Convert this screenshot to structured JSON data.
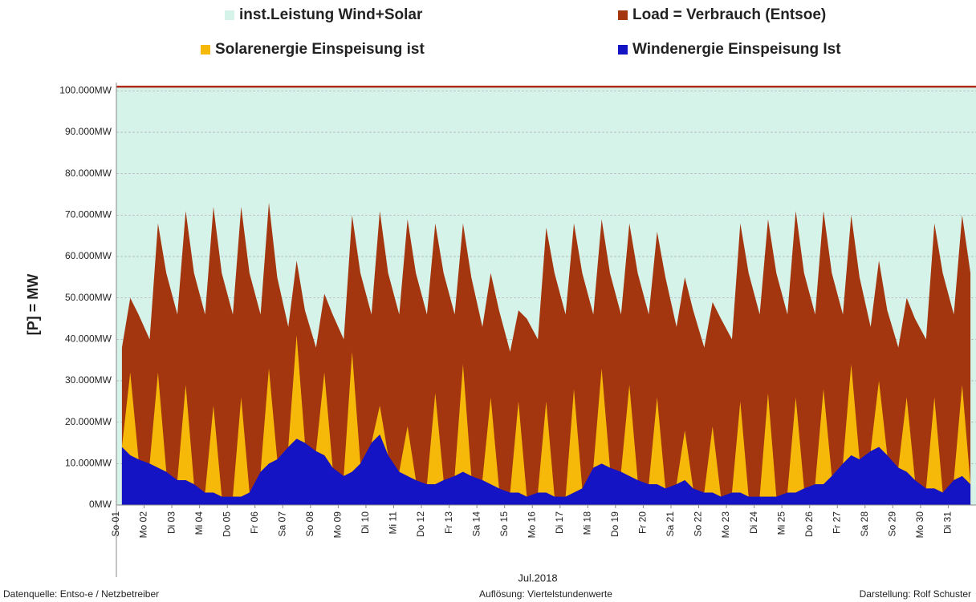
{
  "chart_data": {
    "type": "area",
    "capacity": {
      "name": "inst.Leistung Wind+Solar",
      "color": "#d6f3ea",
      "line_color": "#b0281a",
      "value": 101000
    },
    "x": [
      1.2,
      1.5,
      1.8,
      2.2,
      2.5,
      2.8,
      3.2,
      3.5,
      3.8,
      4.2,
      4.5,
      4.8,
      5.2,
      5.5,
      5.8,
      6.2,
      6.5,
      6.8,
      7.2,
      7.5,
      7.8,
      8.2,
      8.5,
      8.8,
      9.2,
      9.5,
      9.8,
      10.2,
      10.5,
      10.8,
      11.2,
      11.5,
      11.8,
      12.2,
      12.5,
      12.8,
      13.2,
      13.5,
      13.8,
      14.2,
      14.5,
      14.8,
      15.2,
      15.5,
      15.8,
      16.2,
      16.5,
      16.8,
      17.2,
      17.5,
      17.8,
      18.2,
      18.5,
      18.8,
      19.2,
      19.5,
      19.8,
      20.2,
      20.5,
      20.8,
      21.2,
      21.5,
      21.8,
      22.2,
      22.5,
      22.8,
      23.2,
      23.5,
      23.8,
      24.2,
      24.5,
      24.8,
      25.2,
      25.5,
      25.8,
      26.2,
      26.5,
      26.8,
      27.2,
      27.5,
      27.8,
      28.2,
      28.5,
      28.8,
      29.2,
      29.5,
      29.8,
      30.2,
      30.5,
      30.8,
      31.2,
      31.5,
      31.8
    ],
    "series": [
      {
        "name": "Load =  Verbrauch (Entsoe)",
        "color": "#a3360f",
        "values": [
          38000,
          50000,
          46000,
          40000,
          68000,
          56000,
          46000,
          71000,
          56000,
          46000,
          72000,
          56000,
          46000,
          72000,
          56000,
          46000,
          73000,
          55000,
          43000,
          59000,
          47000,
          38000,
          51000,
          46000,
          40000,
          70000,
          56000,
          46000,
          71000,
          56000,
          46000,
          69000,
          56000,
          46000,
          68000,
          56000,
          46000,
          68000,
          55000,
          43000,
          56000,
          47000,
          37000,
          47000,
          45000,
          40000,
          67000,
          56000,
          46000,
          68000,
          56000,
          46000,
          69000,
          56000,
          46000,
          68000,
          56000,
          46000,
          66000,
          55000,
          43000,
          55000,
          47000,
          38000,
          49000,
          45000,
          40000,
          68000,
          56000,
          46000,
          69000,
          56000,
          46000,
          71000,
          56000,
          46000,
          71000,
          56000,
          46000,
          70000,
          55000,
          43000,
          59000,
          47000,
          38000,
          50000,
          45000,
          40000,
          68000,
          56000,
          46000,
          70000,
          56000
        ]
      },
      {
        "name": "Solarenergie Einspeisung ist",
        "color": "#f6b90a",
        "values": [
          0,
          20000,
          0,
          0,
          23000,
          0,
          0,
          23000,
          0,
          0,
          21000,
          0,
          0,
          24000,
          0,
          0,
          23000,
          0,
          0,
          25000,
          0,
          0,
          20000,
          0,
          0,
          29000,
          0,
          0,
          7000,
          0,
          0,
          12000,
          0,
          0,
          22000,
          0,
          0,
          26000,
          0,
          0,
          21000,
          0,
          0,
          22000,
          0,
          0,
          22000,
          0,
          0,
          25000,
          0,
          0,
          23000,
          0,
          0,
          22000,
          0,
          0,
          21000,
          0,
          0,
          12000,
          0,
          0,
          16000,
          0,
          0,
          22000,
          0,
          0,
          25000,
          0,
          0,
          23000,
          0,
          0,
          23000,
          0,
          0,
          22000,
          0,
          0,
          16000,
          0,
          0,
          18000,
          0,
          0,
          22000,
          0,
          0,
          22000,
          0
        ]
      },
      {
        "name": "Windenergie Einspeisung Ist",
        "color": "#1414c4",
        "values": [
          14000,
          12000,
          11000,
          10000,
          9000,
          8000,
          6000,
          6000,
          5000,
          3000,
          3000,
          2000,
          2000,
          2000,
          3000,
          8000,
          10000,
          11000,
          14000,
          16000,
          15000,
          13000,
          12000,
          9000,
          7000,
          8000,
          10000,
          15000,
          17000,
          12000,
          8000,
          7000,
          6000,
          5000,
          5000,
          6000,
          7000,
          8000,
          7000,
          6000,
          5000,
          4000,
          3000,
          3000,
          2000,
          3000,
          3000,
          2000,
          2000,
          3000,
          4000,
          9000,
          10000,
          9000,
          8000,
          7000,
          6000,
          5000,
          5000,
          4000,
          5000,
          6000,
          4000,
          3000,
          3000,
          2000,
          3000,
          3000,
          2000,
          2000,
          2000,
          2000,
          3000,
          3000,
          4000,
          5000,
          5000,
          7000,
          10000,
          12000,
          11000,
          13000,
          14000,
          12000,
          9000,
          8000,
          6000,
          4000,
          4000,
          3000,
          6000,
          7000,
          5000
        ]
      }
    ],
    "xlim": [
      1,
      32
    ],
    "xticks": [
      {
        "value": 1,
        "label": "So 01"
      },
      {
        "value": 2,
        "label": "Mo 02"
      },
      {
        "value": 3,
        "label": "Di 03"
      },
      {
        "value": 4,
        "label": "Mi 04"
      },
      {
        "value": 5,
        "label": "Do 05"
      },
      {
        "value": 6,
        "label": "Fr 06"
      },
      {
        "value": 7,
        "label": "Sa 07"
      },
      {
        "value": 8,
        "label": "So 08"
      },
      {
        "value": 9,
        "label": "Mo 09"
      },
      {
        "value": 10,
        "label": "Di 10"
      },
      {
        "value": 11,
        "label": "Mi 11"
      },
      {
        "value": 12,
        "label": "Do 12"
      },
      {
        "value": 13,
        "label": "Fr 13"
      },
      {
        "value": 14,
        "label": "Sa 14"
      },
      {
        "value": 15,
        "label": "So 15"
      },
      {
        "value": 16,
        "label": "Mo 16"
      },
      {
        "value": 17,
        "label": "Di 17"
      },
      {
        "value": 18,
        "label": "Mi 18"
      },
      {
        "value": 19,
        "label": "Do 19"
      },
      {
        "value": 20,
        "label": "Fr 20"
      },
      {
        "value": 21,
        "label": "Sa 21"
      },
      {
        "value": 22,
        "label": "So 22"
      },
      {
        "value": 23,
        "label": "Mo 23"
      },
      {
        "value": 24,
        "label": "Di 24"
      },
      {
        "value": 25,
        "label": "Mi 25"
      },
      {
        "value": 26,
        "label": "Do 26"
      },
      {
        "value": 27,
        "label": "Fr 27"
      },
      {
        "value": 28,
        "label": "Sa 28"
      },
      {
        "value": 29,
        "label": "So 29"
      },
      {
        "value": 30,
        "label": "Mo 30"
      },
      {
        "value": 31,
        "label": "Di 31"
      }
    ],
    "ylim": [
      0,
      102000
    ],
    "yticks": [
      {
        "value": 0,
        "label": "0MW"
      },
      {
        "value": 10000,
        "label": "10.000MW"
      },
      {
        "value": 20000,
        "label": "20.000MW"
      },
      {
        "value": 30000,
        "label": "30.000MW"
      },
      {
        "value": 40000,
        "label": "40.000MW"
      },
      {
        "value": 50000,
        "label": "50.000MW"
      },
      {
        "value": 60000,
        "label": "60.000MW"
      },
      {
        "value": 70000,
        "label": "70.000MW"
      },
      {
        "value": 80000,
        "label": "80.000MW"
      },
      {
        "value": 90000,
        "label": "90.000MW"
      },
      {
        "value": 100000,
        "label": "100.000MW"
      }
    ],
    "grid": true,
    "ylabel": "[P] = MW",
    "xlabel": "Jul.2018",
    "footer": [
      "Datenquelle: Entso-e / Netzbetreiber",
      "Auflösung: Viertelstundenwerte",
      "Darstellung: Rolf Schuster"
    ]
  }
}
